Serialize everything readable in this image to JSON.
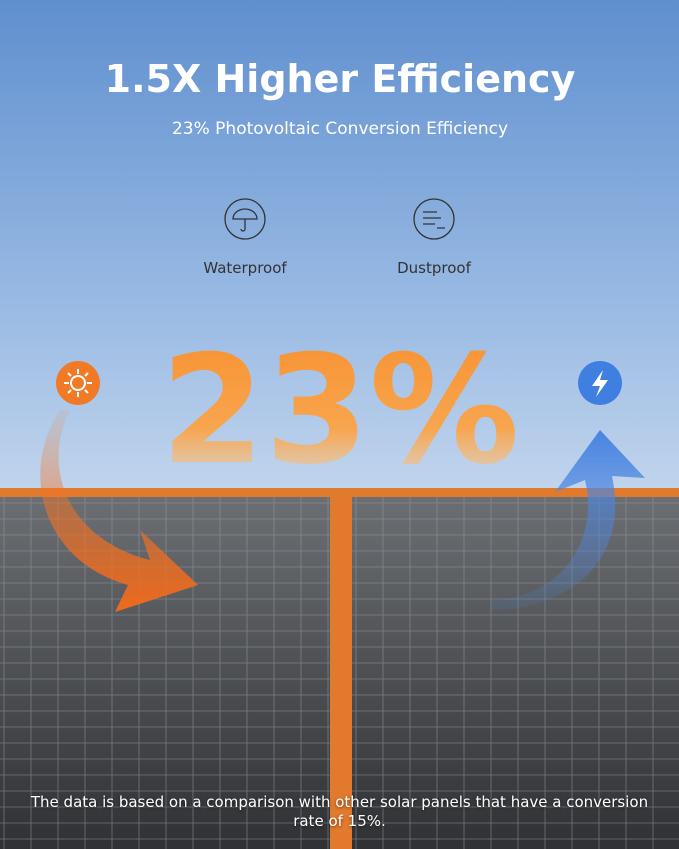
{
  "header": {
    "title": "1.5X Higher Efficiency",
    "subtitle": "23% Photovoltaic Conversion Efficiency"
  },
  "features": [
    {
      "label": "Waterproof"
    },
    {
      "label": "Dustproof"
    }
  ],
  "highlight": "23%",
  "footnote": "The data is based on a comparison with other solar panels that have a conversion rate of 15%."
}
